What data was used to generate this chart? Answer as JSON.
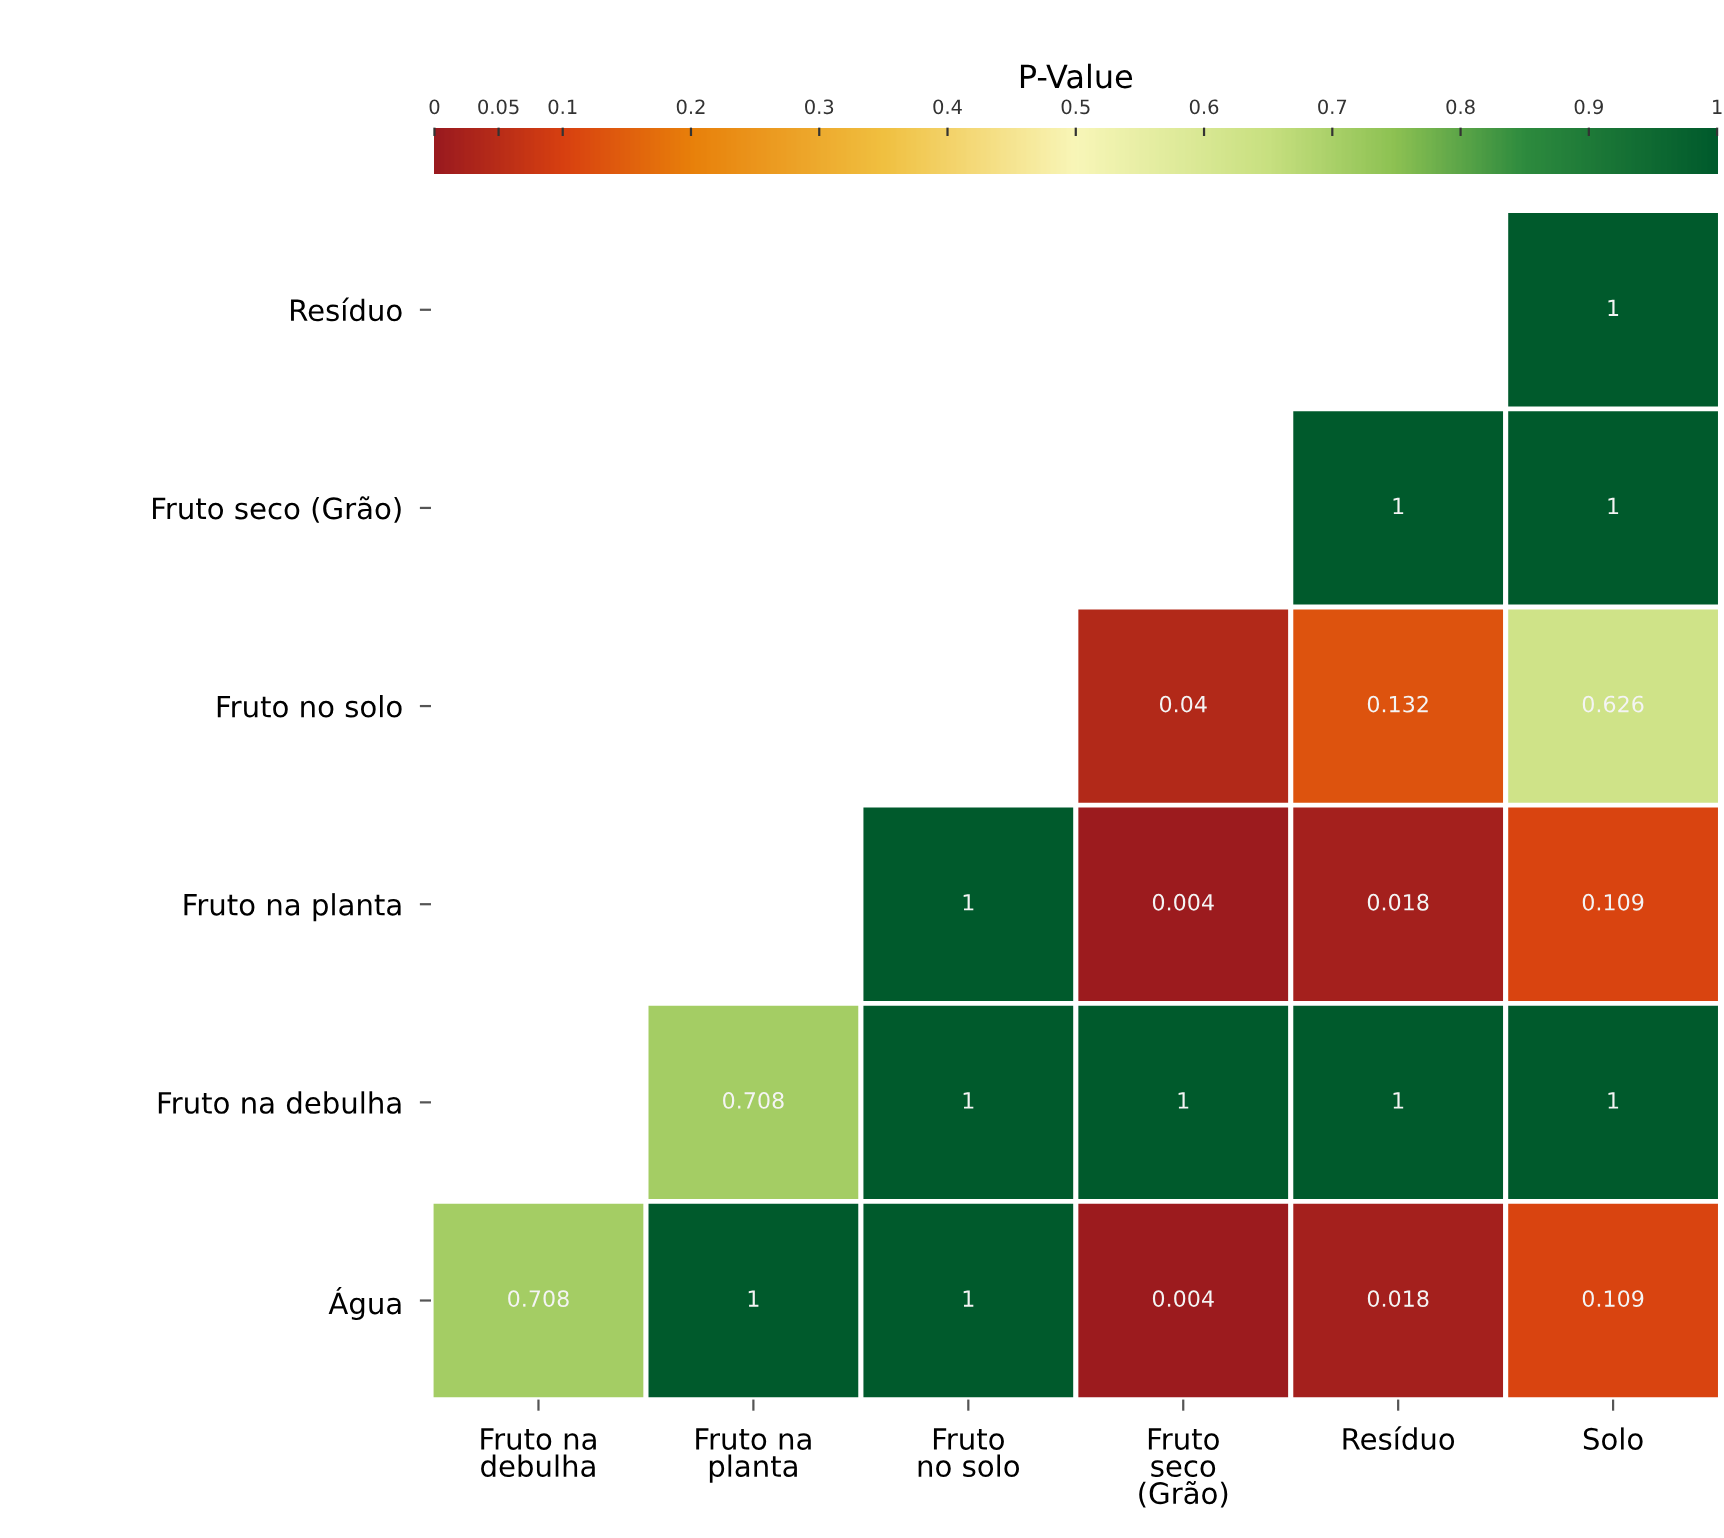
{
  "chart_data": {
    "type": "heatmap",
    "clabel": "P-Value",
    "categories": [
      "Fruto na\ndebulha",
      "Fruto na\nplanta",
      "Fruto\nno solo",
      "Fruto\nseco\n(Grão)",
      "Resíduo",
      "Solo"
    ],
    "y_categories": [
      "Resíduo",
      "Fruto seco (Grão)",
      "Fruto no solo",
      "Fruto na planta",
      "Fruto na debulha",
      "Água"
    ],
    "cells": [
      [
        null,
        null,
        null,
        null,
        null,
        1
      ],
      [
        null,
        null,
        null,
        null,
        1,
        1
      ],
      [
        null,
        null,
        null,
        0.04,
        0.132,
        0.626
      ],
      [
        null,
        null,
        1,
        0.004,
        0.018,
        0.109
      ],
      [
        null,
        0.708,
        1,
        1,
        1,
        1
      ],
      [
        0.708,
        1,
        1,
        0.004,
        0.018,
        0.109
      ]
    ],
    "clim": [
      0,
      1
    ],
    "cticks": [
      0,
      0.05,
      0.1,
      0.2,
      0.3,
      0.4,
      0.5,
      0.6,
      0.7,
      0.8,
      0.9,
      1
    ],
    "data_labels": true
  }
}
